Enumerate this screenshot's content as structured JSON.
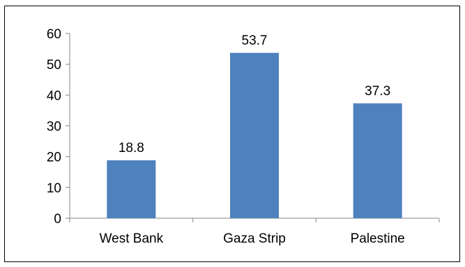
{
  "chart_data": {
    "type": "bar",
    "categories": [
      "West Bank",
      "Gaza Strip",
      "Palestine"
    ],
    "values": [
      18.8,
      53.7,
      37.3
    ],
    "data_labels": [
      "18.8",
      "53.7",
      "37.3"
    ],
    "ylim": [
      0,
      60
    ],
    "yticks": [
      "0",
      "10",
      "20",
      "30",
      "40",
      "50",
      "60"
    ],
    "grid": false,
    "legend": "none",
    "bar_color": "#4f81bd"
  }
}
